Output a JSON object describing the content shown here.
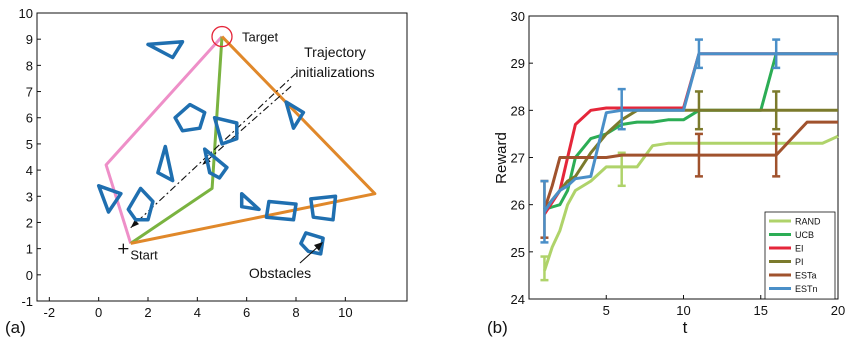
{
  "chart_data": [
    {
      "panel_label": "(a)",
      "type": "scatter",
      "xlim": [
        -2.5,
        12.5
      ],
      "ylim": [
        -1,
        10
      ],
      "xticks": [
        -2,
        0,
        2,
        4,
        6,
        8,
        10
      ],
      "yticks": [
        -1,
        0,
        1,
        2,
        3,
        4,
        5,
        6,
        7,
        8,
        9,
        10
      ],
      "grid": false,
      "start": {
        "label": "Start",
        "x": 1.0,
        "y": 1.0
      },
      "target": {
        "label": "Target",
        "x": 5.0,
        "y": 9.1
      },
      "annotations": {
        "trajectories": [
          "Trajectory",
          "initializations"
        ],
        "obstacles": "Obstacles"
      },
      "trajectories": [
        {
          "color": "#ee8fc8",
          "points": [
            [
              1.3,
              1.2
            ],
            [
              0.3,
              4.2
            ],
            [
              5.0,
              9.1
            ]
          ]
        },
        {
          "color": "#7ab340",
          "points": [
            [
              1.3,
              1.2
            ],
            [
              4.6,
              3.3
            ],
            [
              5.0,
              9.1
            ]
          ]
        },
        {
          "color": "#e0882a",
          "points": [
            [
              1.3,
              1.2
            ],
            [
              11.2,
              3.1
            ],
            [
              5.0,
              9.1
            ]
          ]
        }
      ],
      "pointer_lines": [
        {
          "from": [
            8.0,
            7.7
          ],
          "to": [
            1.3,
            1.8
          ]
        },
        {
          "from": [
            7.8,
            7.2
          ],
          "to": [
            4.2,
            4.2
          ]
        }
      ],
      "obstacles": [
        {
          "points": [
            [
              2.0,
              8.8
            ],
            [
              3.4,
              8.9
            ],
            [
              3.0,
              8.3
            ]
          ]
        },
        {
          "points": [
            [
              3.7,
              6.5
            ],
            [
              4.3,
              6.2
            ],
            [
              4.1,
              5.6
            ],
            [
              3.4,
              5.5
            ],
            [
              3.1,
              6.0
            ]
          ]
        },
        {
          "points": [
            [
              4.7,
              6.0
            ],
            [
              5.6,
              5.8
            ],
            [
              5.6,
              5.2
            ],
            [
              5.0,
              5.0
            ]
          ]
        },
        {
          "points": [
            [
              2.7,
              4.9
            ],
            [
              2.4,
              3.9
            ],
            [
              3.0,
              3.6
            ]
          ]
        },
        {
          "points": [
            [
              4.3,
              4.8
            ],
            [
              5.2,
              4.1
            ],
            [
              4.9,
              3.7
            ],
            [
              4.5,
              3.9
            ]
          ]
        },
        {
          "points": [
            [
              0.0,
              3.4
            ],
            [
              0.9,
              3.1
            ],
            [
              0.4,
              2.4
            ]
          ]
        },
        {
          "points": [
            [
              1.7,
              3.3
            ],
            [
              2.2,
              2.8
            ],
            [
              2.0,
              2.1
            ],
            [
              1.5,
              2.1
            ],
            [
              1.2,
              2.5
            ]
          ]
        },
        {
          "points": [
            [
              5.8,
              3.1
            ],
            [
              6.5,
              2.5
            ],
            [
              5.8,
              2.6
            ]
          ]
        },
        {
          "points": [
            [
              6.9,
              2.8
            ],
            [
              8.0,
              2.7
            ],
            [
              7.9,
              2.1
            ],
            [
              6.8,
              2.2
            ]
          ]
        },
        {
          "points": [
            [
              8.6,
              2.9
            ],
            [
              9.6,
              3.0
            ],
            [
              9.5,
              2.1
            ],
            [
              8.7,
              2.2
            ]
          ]
        },
        {
          "points": [
            [
              8.4,
              1.6
            ],
            [
              9.1,
              1.4
            ],
            [
              9.0,
              0.8
            ],
            [
              8.5,
              0.9
            ],
            [
              8.2,
              1.2
            ]
          ]
        },
        {
          "points": [
            [
              7.6,
              6.6
            ],
            [
              8.3,
              6.2
            ],
            [
              7.9,
              5.6
            ]
          ]
        }
      ]
    },
    {
      "panel_label": "(b)",
      "type": "line",
      "xlabel": "t",
      "ylabel": "Reward",
      "xlim": [
        0,
        20
      ],
      "ylim": [
        24,
        30
      ],
      "xticks": [
        5,
        10,
        15,
        20
      ],
      "yticks": [
        24,
        25,
        26,
        27,
        28,
        29,
        30
      ],
      "grid": false,
      "legend_position": "bottom-right",
      "series": [
        {
          "name": "RAND",
          "color": "#afd36a",
          "x": [
            1,
            1.5,
            2,
            2.5,
            3,
            4,
            5,
            6,
            7,
            8,
            9,
            10,
            11,
            12,
            13,
            14,
            15,
            16,
            17,
            18,
            19,
            20
          ],
          "y": [
            24.6,
            25.1,
            25.45,
            26.0,
            26.3,
            26.5,
            26.8,
            26.8,
            26.8,
            27.25,
            27.3,
            27.3,
            27.3,
            27.3,
            27.3,
            27.3,
            27.3,
            27.3,
            27.3,
            27.3,
            27.3,
            27.45
          ],
          "error_bars": [
            {
              "x": 1,
              "lo": 24.4,
              "hi": 24.9
            },
            {
              "x": 6,
              "lo": 26.4,
              "hi": 27.1
            }
          ]
        },
        {
          "name": "UCB",
          "color": "#2cad55",
          "x": [
            1,
            1.5,
            2,
            2.5,
            3,
            4,
            5,
            6,
            7,
            8,
            9,
            10,
            11,
            12,
            13,
            14,
            15,
            16,
            17,
            18,
            19,
            20
          ],
          "y": [
            25.9,
            25.95,
            26.0,
            26.3,
            27.0,
            27.4,
            27.5,
            27.7,
            27.75,
            27.75,
            27.8,
            27.8,
            28.0,
            28.0,
            28.0,
            28.0,
            28.0,
            29.2,
            29.2,
            29.2,
            29.2,
            29.2
          ],
          "error_bars": []
        },
        {
          "name": "EI",
          "color": "#e5263a",
          "x": [
            1,
            1.5,
            2,
            2.5,
            3,
            4,
            5,
            6,
            7,
            8,
            9,
            10,
            11,
            12,
            13,
            14,
            15,
            16,
            17,
            18,
            19,
            20
          ],
          "y": [
            25.8,
            26.05,
            26.3,
            27.0,
            27.7,
            28.0,
            28.05,
            28.05,
            28.05,
            28.05,
            28.05,
            28.05,
            29.2,
            29.2,
            29.2,
            29.2,
            29.2,
            29.2,
            29.2,
            29.2,
            29.2,
            29.2
          ],
          "error_bars": []
        },
        {
          "name": "PI",
          "color": "#7b7a2c",
          "x": [
            1,
            1.5,
            2,
            2.5,
            3,
            4,
            5,
            6,
            7,
            8,
            9,
            10,
            11,
            12,
            13,
            14,
            15,
            16,
            17,
            18,
            19,
            20
          ],
          "y": [
            25.9,
            26.1,
            26.3,
            26.5,
            26.6,
            27.1,
            27.5,
            27.8,
            28.0,
            28.0,
            28.0,
            28.0,
            28.0,
            28.0,
            28.0,
            28.0,
            28.0,
            28.0,
            28.0,
            28.0,
            28.0,
            28.0
          ],
          "error_bars": [
            {
              "x": 11,
              "lo": 27.6,
              "hi": 28.4
            },
            {
              "x": 16,
              "lo": 27.6,
              "hi": 28.4
            }
          ]
        },
        {
          "name": "ESTa",
          "color": "#a0522d",
          "x": [
            1,
            1.5,
            2,
            2.5,
            3,
            4,
            5,
            6,
            7,
            8,
            9,
            10,
            11,
            12,
            13,
            14,
            15,
            16,
            17,
            18,
            19,
            20
          ],
          "y": [
            25.9,
            26.4,
            27.0,
            27.0,
            27.0,
            27.0,
            27.0,
            27.05,
            27.05,
            27.05,
            27.05,
            27.05,
            27.05,
            27.05,
            27.05,
            27.05,
            27.05,
            27.05,
            27.4,
            27.75,
            27.75,
            27.75
          ],
          "error_bars": [
            {
              "x": 1,
              "lo": 25.3,
              "hi": 26.5
            },
            {
              "x": 11,
              "lo": 26.6,
              "hi": 27.5
            },
            {
              "x": 16,
              "lo": 26.6,
              "hi": 27.5
            }
          ]
        },
        {
          "name": "ESTn",
          "color": "#4a8fc8",
          "x": [
            1,
            1.5,
            2,
            2.5,
            3,
            4,
            5,
            6,
            7,
            8,
            9,
            10,
            11,
            12,
            13,
            14,
            15,
            16,
            17,
            18,
            19,
            20
          ],
          "y": [
            25.85,
            26.1,
            26.3,
            26.4,
            26.55,
            26.6,
            27.95,
            28.0,
            28.0,
            28.0,
            28.0,
            28.0,
            29.2,
            29.2,
            29.2,
            29.2,
            29.2,
            29.2,
            29.2,
            29.2,
            29.2,
            29.2
          ],
          "error_bars": [
            {
              "x": 1,
              "lo": 25.2,
              "hi": 26.5
            },
            {
              "x": 6,
              "lo": 27.6,
              "hi": 28.45
            },
            {
              "x": 11,
              "lo": 28.9,
              "hi": 29.5
            },
            {
              "x": 16,
              "lo": 28.9,
              "hi": 29.5
            }
          ]
        }
      ]
    }
  ]
}
